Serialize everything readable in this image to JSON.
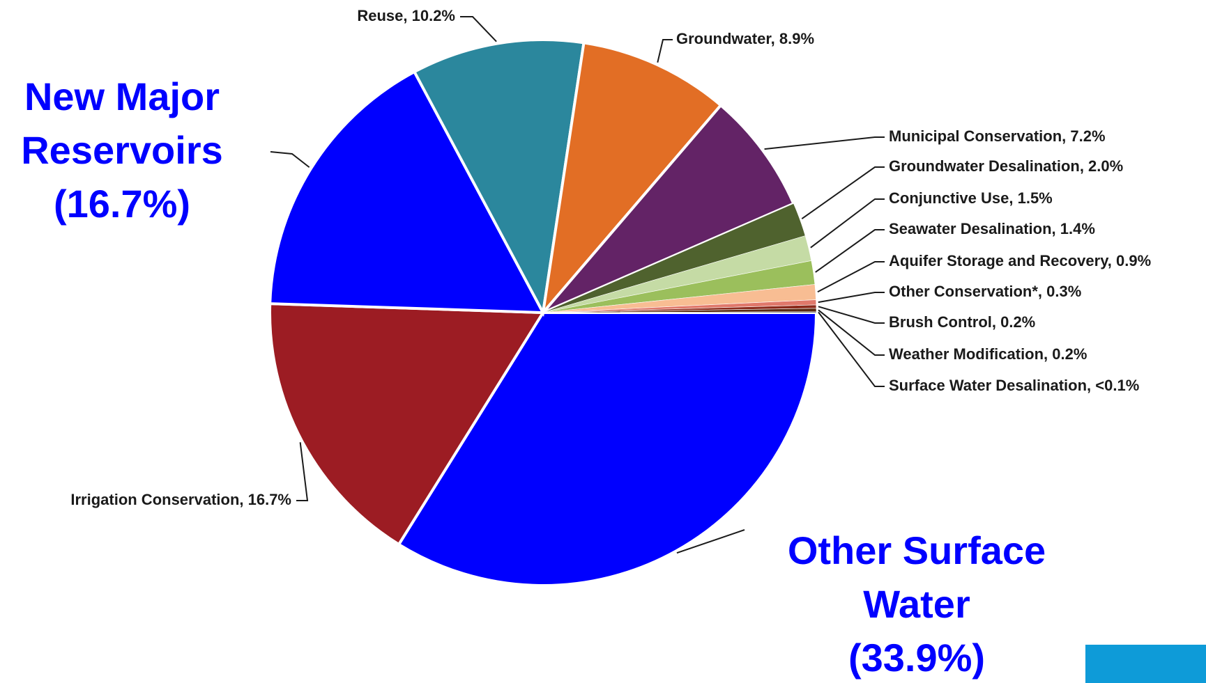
{
  "chart_data": {
    "type": "pie",
    "labels": [
      [
        "Other Surface",
        "Water",
        "(33.9%)"
      ],
      "Irrigation Conservation, 16.7%",
      [
        "New Major",
        "Reservoirs",
        "(16.7%)"
      ],
      "Reuse, 10.2%",
      "Groundwater, 8.9%",
      "Municipal Conservation, 7.2%",
      "Groundwater Desalination, 2.0%",
      "Conjunctive Use, 1.5%",
      "Seawater Desalination, 1.4%",
      "Aquifer Storage and Recovery, 0.9%",
      "Other Conservation*, 0.3%",
      "Brush Control, 0.2%",
      "Weather Modification, 0.2%",
      "Surface Water Desalination, <0.1%"
    ],
    "values": [
      33.9,
      16.7,
      16.7,
      10.2,
      8.9,
      7.2,
      2.0,
      1.5,
      1.4,
      0.9,
      0.3,
      0.2,
      0.2,
      0.05
    ],
    "colors": [
      "#0000ff",
      "#9c1c23",
      "#0000ff",
      "#2b879d",
      "#e26e25",
      "#632366",
      "#4f622e",
      "#c5dba5",
      "#9bbf5c",
      "#f8bd93",
      "#e0786b",
      "#8b2a1c",
      "#5a2a12",
      "#333333"
    ],
    "start_angle": 0,
    "direction": "clockwise"
  }
}
